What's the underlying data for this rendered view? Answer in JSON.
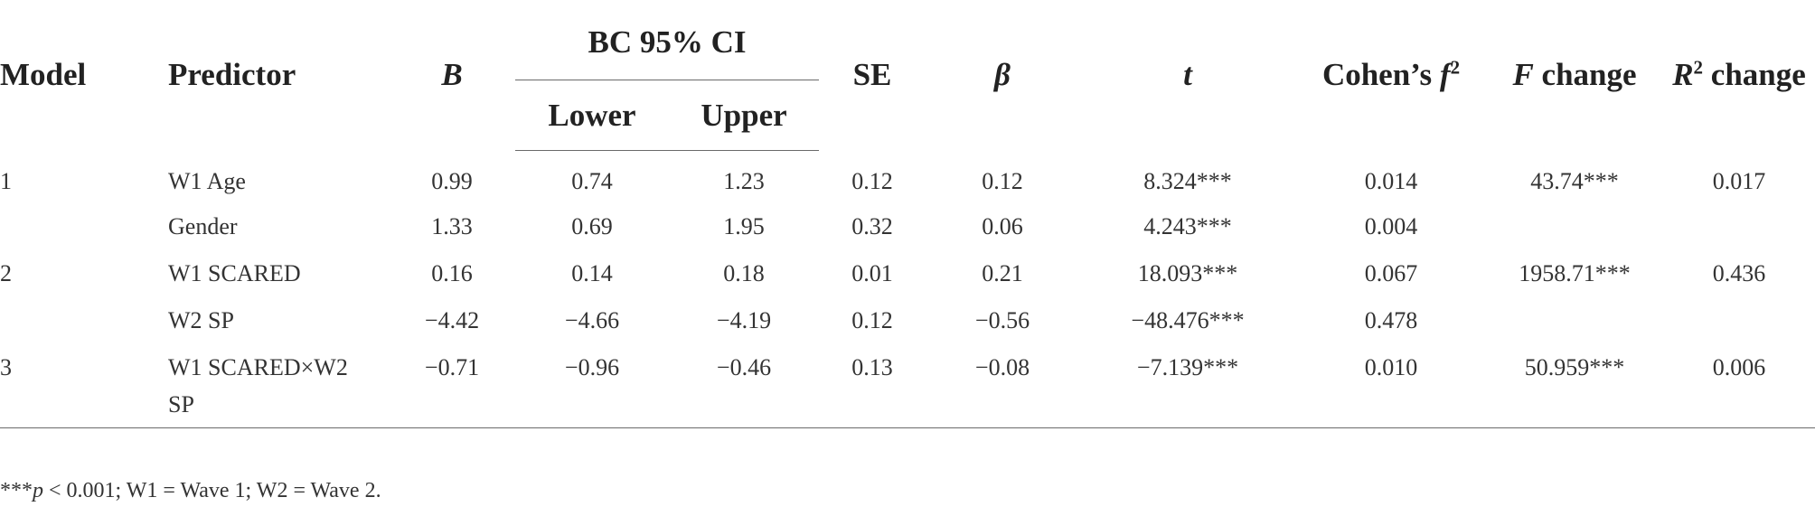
{
  "headers": {
    "model": "Model",
    "predictor": "Predictor",
    "b": "B",
    "ci": "BC 95% CI",
    "lower": "Lower",
    "upper": "Upper",
    "se": "SE",
    "beta": "β",
    "t": "t",
    "cohens_text": "Cohen’s ",
    "cohens_f": "f",
    "cohens_sup": "2",
    "fchange_f": "F",
    "fchange_text": " change",
    "r2_r": "R",
    "r2_sup": "2",
    "r2_text": " change"
  },
  "rows": [
    {
      "model": "1",
      "predictor": "W1 Age",
      "b": "0.99",
      "lower": "0.74",
      "upper": "1.23",
      "se": "0.12",
      "beta": "0.12",
      "t": "8.324***",
      "cohens": "0.014",
      "fchange": "43.74***",
      "r2change": "0.017"
    },
    {
      "model": "",
      "predictor": "Gender",
      "b": "1.33",
      "lower": "0.69",
      "upper": "1.95",
      "se": "0.32",
      "beta": "0.06",
      "t": "4.243***",
      "cohens": "0.004",
      "fchange": "",
      "r2change": ""
    },
    {
      "model": "2",
      "predictor": "W1 SCARED",
      "b": "0.16",
      "lower": "0.14",
      "upper": "0.18",
      "se": "0.01",
      "beta": "0.21",
      "t": "18.093***",
      "cohens": "0.067",
      "fchange": "1958.71***",
      "r2change": "0.436"
    },
    {
      "model": "",
      "predictor": "W2 SP",
      "b": "−4.42",
      "lower": "−4.66",
      "upper": "−4.19",
      "se": "0.12",
      "beta": "−0.56",
      "t": "−48.476***",
      "cohens": "0.478",
      "fchange": "",
      "r2change": ""
    },
    {
      "model": "3",
      "predictor": "W1 SCARED×W2",
      "b": "−0.71",
      "lower": "−0.96",
      "upper": "−0.46",
      "se": "0.13",
      "beta": "−0.08",
      "t": "−7.139***",
      "cohens": "0.010",
      "fchange": "50.959***",
      "r2change": "0.006"
    },
    {
      "model": "",
      "predictor": "SP",
      "b": "",
      "lower": "",
      "upper": "",
      "se": "",
      "beta": "",
      "t": "",
      "cohens": "",
      "fchange": "",
      "r2change": ""
    }
  ],
  "footnote": {
    "stars": "***",
    "p": "p",
    "rest": " < 0.001; W1 = Wave 1; W2 = Wave 2."
  }
}
